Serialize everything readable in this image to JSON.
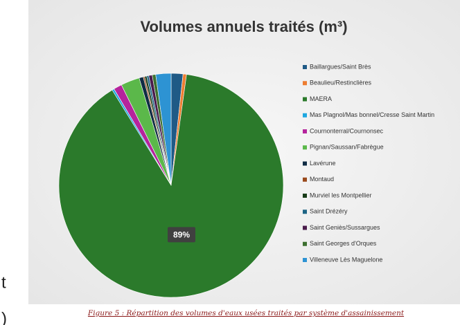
{
  "chart_data": {
    "type": "pie",
    "title": "Volumes annuels traités (m³)",
    "categories": [
      "Baillargues/Saint Brès",
      "Beaulieu/Restinclières",
      "MAERA",
      "Mas Plagnol/Mas bonnel/Cresse Saint Martin",
      "Cournonterral/Cournonsec",
      "Pignan/Saussan/Fabrègue",
      "Lavérune",
      "Montaud",
      "Murviel les Montpellier",
      "Saint Drézéry",
      "Saint Geniès/Sussargues",
      "Saint Georges d'Orques",
      "Villeneuve Lès Maguelone"
    ],
    "values": [
      1.7,
      0.5,
      89,
      0.3,
      1.2,
      2.7,
      0.6,
      0.2,
      0.3,
      0.3,
      0.5,
      0.5,
      2.2
    ],
    "value_labels": [
      null,
      null,
      "89%",
      null,
      null,
      null,
      null,
      null,
      null,
      null,
      null,
      null,
      null
    ],
    "colors": [
      "#1f5a86",
      "#ed7d31",
      "#2b7a2b",
      "#1ea7e0",
      "#b5249c",
      "#5bb84a",
      "#102c44",
      "#9a4a1c",
      "#183c18",
      "#1e6585",
      "#4a1c4c",
      "#3d7030",
      "#2d93d3"
    ],
    "legend": "right"
  },
  "caption": "Figure 5 : Répartition des volumes d'eaux usées traités par système d'assainissement",
  "margin_fragments": [
    "t",
    ")"
  ]
}
